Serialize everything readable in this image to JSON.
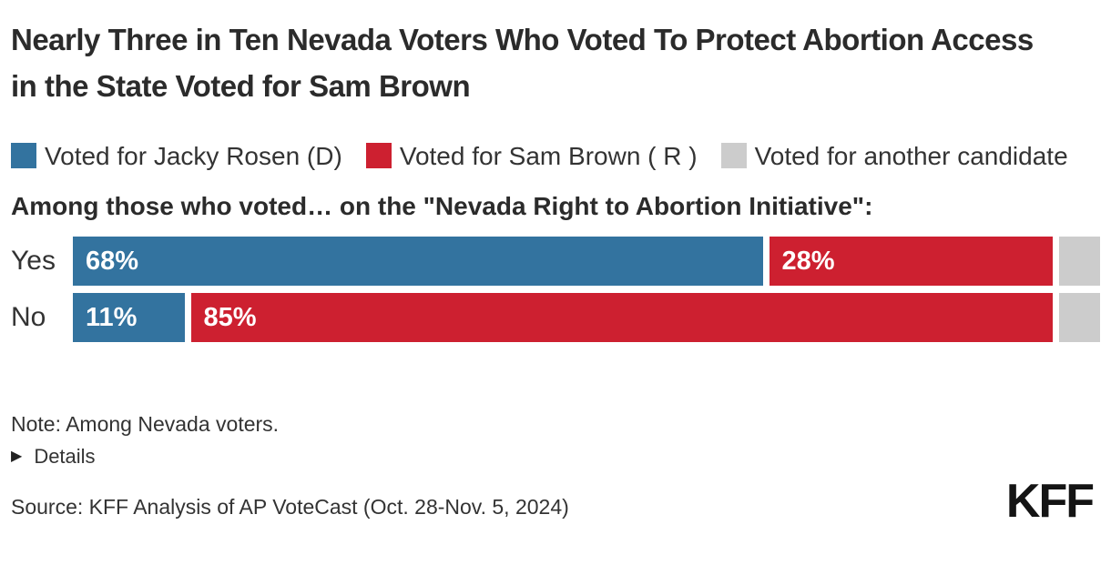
{
  "title": "Nearly Three in Ten Nevada Voters Who Voted To Protect Abortion Access in the State Voted for Sam Brown",
  "legend": [
    {
      "label": "Voted for Jacky Rosen (D)",
      "color": "#33739F"
    },
    {
      "label": "Voted for Sam Brown ( R )",
      "color": "#CD2030"
    },
    {
      "label": "Voted for another candidate",
      "color": "#CCCCCC"
    }
  ],
  "subtitle": "Among those who voted… on the \"Nevada Right to Abortion Initiative\":",
  "chart_data": {
    "type": "bar",
    "orientation": "horizontal",
    "stacked": true,
    "categories": [
      "Yes",
      "No"
    ],
    "series": [
      {
        "name": "Voted for Jacky Rosen (D)",
        "color": "#33739F",
        "values": [
          68,
          11
        ],
        "show_labels": true
      },
      {
        "name": "Voted for Sam Brown ( R )",
        "color": "#CD2030",
        "values": [
          28,
          85
        ],
        "show_labels": true
      },
      {
        "name": "Voted for another candidate",
        "color": "#CCCCCC",
        "values": [
          4,
          4
        ],
        "show_labels": false
      }
    ],
    "label_suffix": "%",
    "xlim": [
      0,
      100
    ],
    "grid": false,
    "legend_position": "top"
  },
  "note": "Note: Among Nevada voters.",
  "details_label": "Details",
  "source": "Source: KFF Analysis of AP VoteCast (Oct. 28-Nov. 5, 2024)",
  "logo": "KFF",
  "colors": {
    "rosen_blue": "#33739F",
    "brown_red": "#CD2030",
    "other_gray": "#CCCCCC",
    "text_dark": "#2b2b2b"
  }
}
